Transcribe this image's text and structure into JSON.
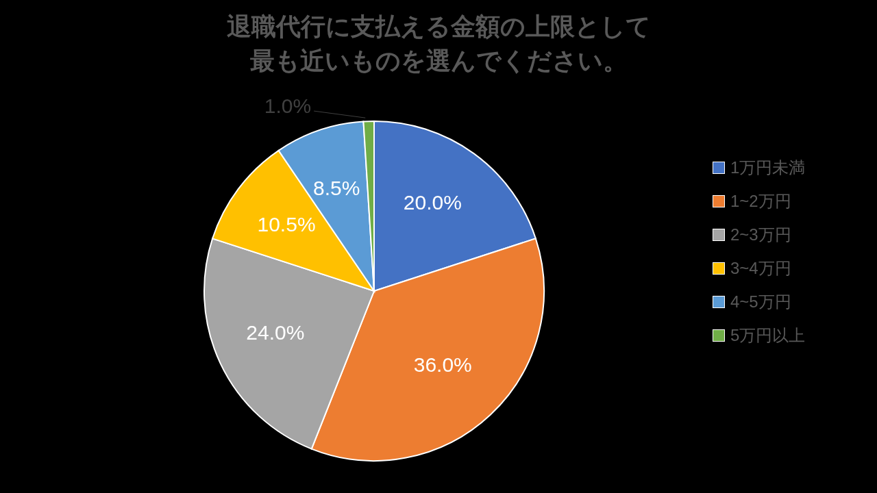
{
  "chart_data": {
    "type": "pie",
    "title": "退職代行に支払える金額の上限として最も近いものを選んでください。",
    "categories": [
      "1万円未満",
      "1~2万円",
      "2~3万円",
      "3~4万円",
      "4~5万円",
      "5万円以上"
    ],
    "values": [
      20,
      36,
      24,
      10.5,
      8.5,
      1
    ],
    "value_labels": [
      "20.0%",
      "36.0%",
      "24.0%",
      "10.5%",
      "8.5%",
      "1.0%"
    ],
    "colors": [
      "#4472c4",
      "#ed7d31",
      "#a5a5a5",
      "#ffc000",
      "#5b9bd5",
      "#70ad47"
    ],
    "legend": "right"
  }
}
